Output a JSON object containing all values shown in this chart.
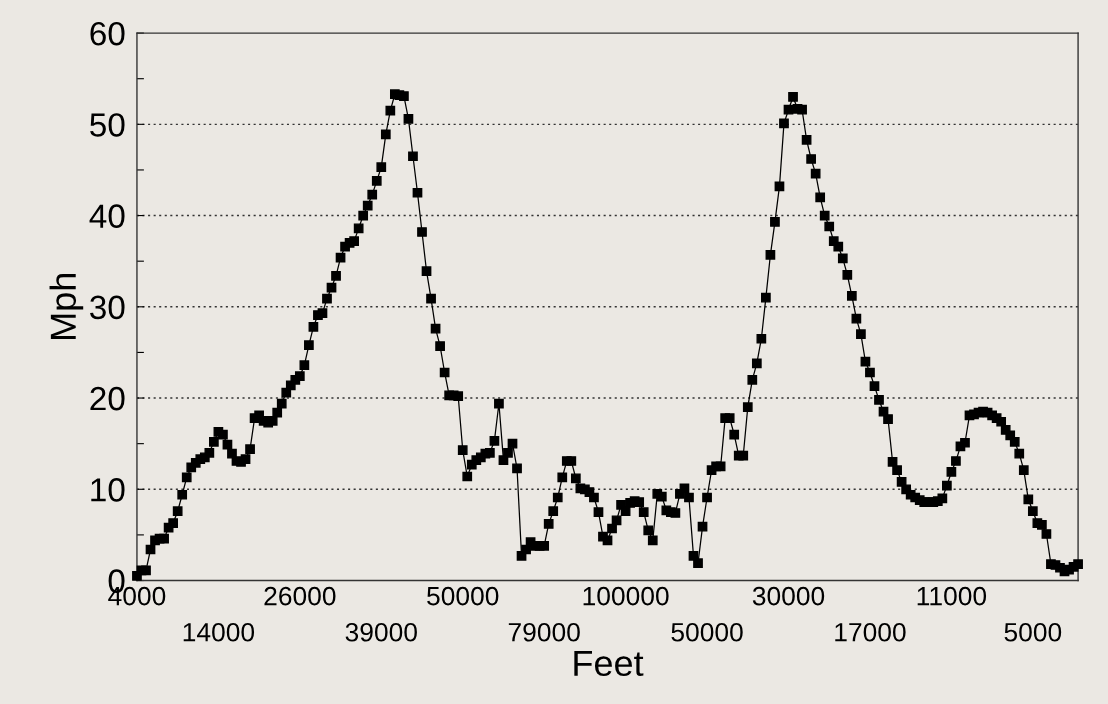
{
  "chart_data": {
    "type": "line",
    "xlabel": "Feet",
    "ylabel": "Mph",
    "categories": [
      "4000",
      null,
      null,
      null,
      null,
      null,
      null,
      null,
      null,
      null,
      null,
      null,
      null,
      null,
      null,
      null,
      null,
      null,
      "14000",
      null,
      null,
      null,
      null,
      null,
      null,
      null,
      null,
      null,
      null,
      null,
      null,
      null,
      null,
      null,
      null,
      null,
      "26000",
      null,
      null,
      null,
      null,
      null,
      null,
      null,
      null,
      null,
      null,
      null,
      null,
      null,
      null,
      null,
      null,
      null,
      "39000",
      null,
      null,
      null,
      null,
      null,
      null,
      null,
      null,
      null,
      null,
      null,
      null,
      null,
      null,
      null,
      null,
      null,
      "50000",
      null,
      null,
      null,
      null,
      null,
      null,
      null,
      null,
      null,
      null,
      null,
      null,
      null,
      null,
      null,
      null,
      null,
      "79000",
      null,
      null,
      null,
      null,
      null,
      null,
      null,
      null,
      null,
      null,
      null,
      null,
      null,
      null,
      null,
      null,
      null,
      "100000",
      null,
      null,
      null,
      null,
      null,
      null,
      null,
      null,
      null,
      null,
      null,
      null,
      null,
      null,
      null,
      null,
      null,
      "50000",
      null,
      null,
      null,
      null,
      null,
      null,
      null,
      null,
      null,
      null,
      null,
      null,
      null,
      null,
      null,
      null,
      null,
      "30000",
      null,
      null,
      null,
      null,
      null,
      null,
      null,
      null,
      null,
      null,
      null,
      null,
      null,
      null,
      null,
      null,
      null,
      "17000",
      null,
      null,
      null,
      null,
      null,
      null,
      null,
      null,
      null,
      null,
      null,
      null,
      null,
      null,
      null,
      null,
      null,
      "11000",
      null,
      null,
      null,
      null,
      null,
      null,
      null,
      null,
      null,
      null,
      null,
      null,
      null,
      null,
      null,
      null,
      null,
      "5000",
      null,
      null,
      null,
      null,
      null,
      null,
      null,
      null,
      null,
      null
    ],
    "series": [
      {
        "color": "#000000",
        "values": [
          0.5,
          1.1,
          1.1,
          3.4,
          4.4,
          4.6,
          4.6,
          5.8,
          6.3,
          7.6,
          9.4,
          11.3,
          12.4,
          12.9,
          13.3,
          13.5,
          14.0,
          15.2,
          16.3,
          16.0,
          14.9,
          13.9,
          13.1,
          13.0,
          13.3,
          14.4,
          17.8,
          18.1,
          17.5,
          17.3,
          17.5,
          18.4,
          19.4,
          20.6,
          21.4,
          22.0,
          22.4,
          23.6,
          25.8,
          27.8,
          29.1,
          29.3,
          30.9,
          32.1,
          33.4,
          35.4,
          36.6,
          37.0,
          37.2,
          38.6,
          40.0,
          41.1,
          42.3,
          43.8,
          45.3,
          48.9,
          51.5,
          53.3,
          53.2,
          53.1,
          50.6,
          46.5,
          42.5,
          38.2,
          33.9,
          30.9,
          27.6,
          25.7,
          22.8,
          20.3,
          20.3,
          20.2,
          14.3,
          11.4,
          12.7,
          13.2,
          13.5,
          13.9,
          14.0,
          15.3,
          19.4,
          13.2,
          14.0,
          15.0,
          12.3,
          2.7,
          3.4,
          4.2,
          3.8,
          3.8,
          3.8,
          6.2,
          7.6,
          9.1,
          11.3,
          13.1,
          13.1,
          11.2,
          10.1,
          10.0,
          9.7,
          9.1,
          7.5,
          4.8,
          4.4,
          5.7,
          6.6,
          8.3,
          7.6,
          8.5,
          8.7,
          8.6,
          7.5,
          5.5,
          4.4,
          9.5,
          9.2,
          7.7,
          7.5,
          7.4,
          9.5,
          10.1,
          9.1,
          2.7,
          1.9,
          5.9,
          9.1,
          12.1,
          12.5,
          12.5,
          17.8,
          17.8,
          16.0,
          13.7,
          13.7,
          19.0,
          22.0,
          23.8,
          26.5,
          31.0,
          35.7,
          39.3,
          43.2,
          50.1,
          51.6,
          53.0,
          51.7,
          51.6,
          48.3,
          46.2,
          44.6,
          42.0,
          40.0,
          38.8,
          37.2,
          36.6,
          35.3,
          33.5,
          31.2,
          28.7,
          27.0,
          24.0,
          22.8,
          21.3,
          19.8,
          18.5,
          17.7,
          13.0,
          12.1,
          10.8,
          10.0,
          9.4,
          9.1,
          8.8,
          8.6,
          8.6,
          8.6,
          8.7,
          9.0,
          10.4,
          11.9,
          13.1,
          14.7,
          15.1,
          18.1,
          18.2,
          18.4,
          18.5,
          18.4,
          18.1,
          17.8,
          17.4,
          16.5,
          15.9,
          15.2,
          13.9,
          12.1,
          8.9,
          7.6,
          6.3,
          6.1,
          5.1,
          1.8,
          1.7,
          1.4,
          1.0,
          1.2,
          1.5,
          1.8
        ]
      }
    ],
    "ylim": [
      0,
      60
    ],
    "yticks": [
      0,
      {
        "value": 5,
        "label": null
      },
      10,
      {
        "value": 15,
        "label": null
      },
      20,
      {
        "value": 25,
        "label": null
      },
      30,
      {
        "value": 35,
        "label": null
      },
      40,
      {
        "value": 45,
        "label": null
      },
      50,
      {
        "value": 55,
        "label": null
      },
      60
    ],
    "grid": "y",
    "marker": "square",
    "line_style": "solid"
  }
}
